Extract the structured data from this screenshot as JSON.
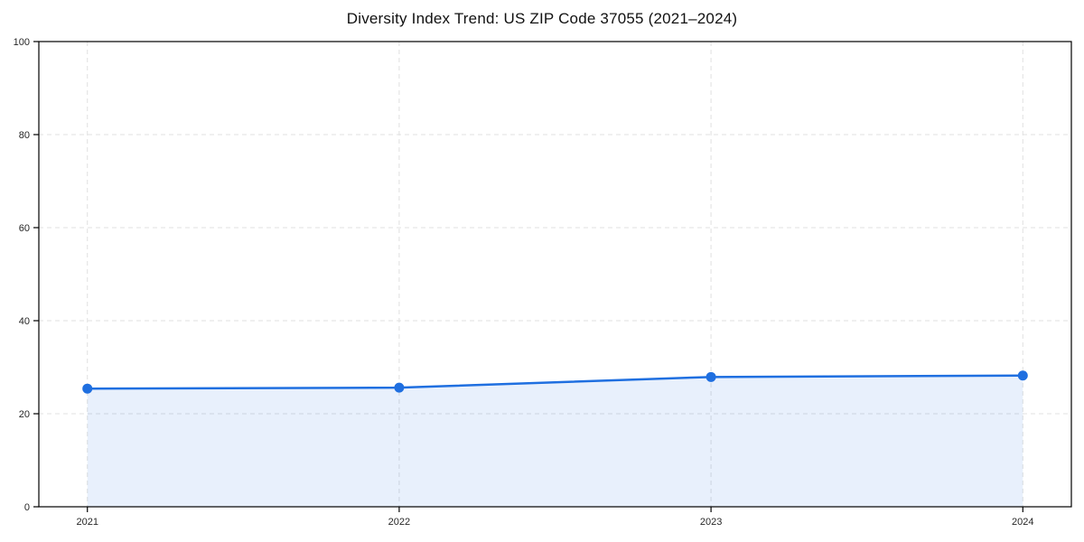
{
  "chart_data": {
    "type": "line",
    "title": "Diversity Index Trend: US ZIP Code 37055 (2021–2024)",
    "x": [
      "2021",
      "2022",
      "2023",
      "2024"
    ],
    "series": [
      {
        "name": "Diversity Index",
        "values": [
          25.4,
          25.6,
          27.9,
          28.2
        ]
      }
    ],
    "xlabel": "",
    "ylabel": "",
    "ylim": [
      0,
      100
    ],
    "yticks": [
      0,
      20,
      40,
      60,
      80,
      100
    ],
    "grid": "dashed",
    "legend_position": "none",
    "area_fill": true,
    "marker": "circle",
    "colors": {
      "line": "#1f6fe0",
      "marker": "#1f6fe0",
      "fill": "#1f6fe0",
      "fill_opacity": 0.1,
      "grid": "#e0e0e0",
      "spine": "#000000",
      "tick_label": "#262626",
      "title": "#111111"
    }
  }
}
